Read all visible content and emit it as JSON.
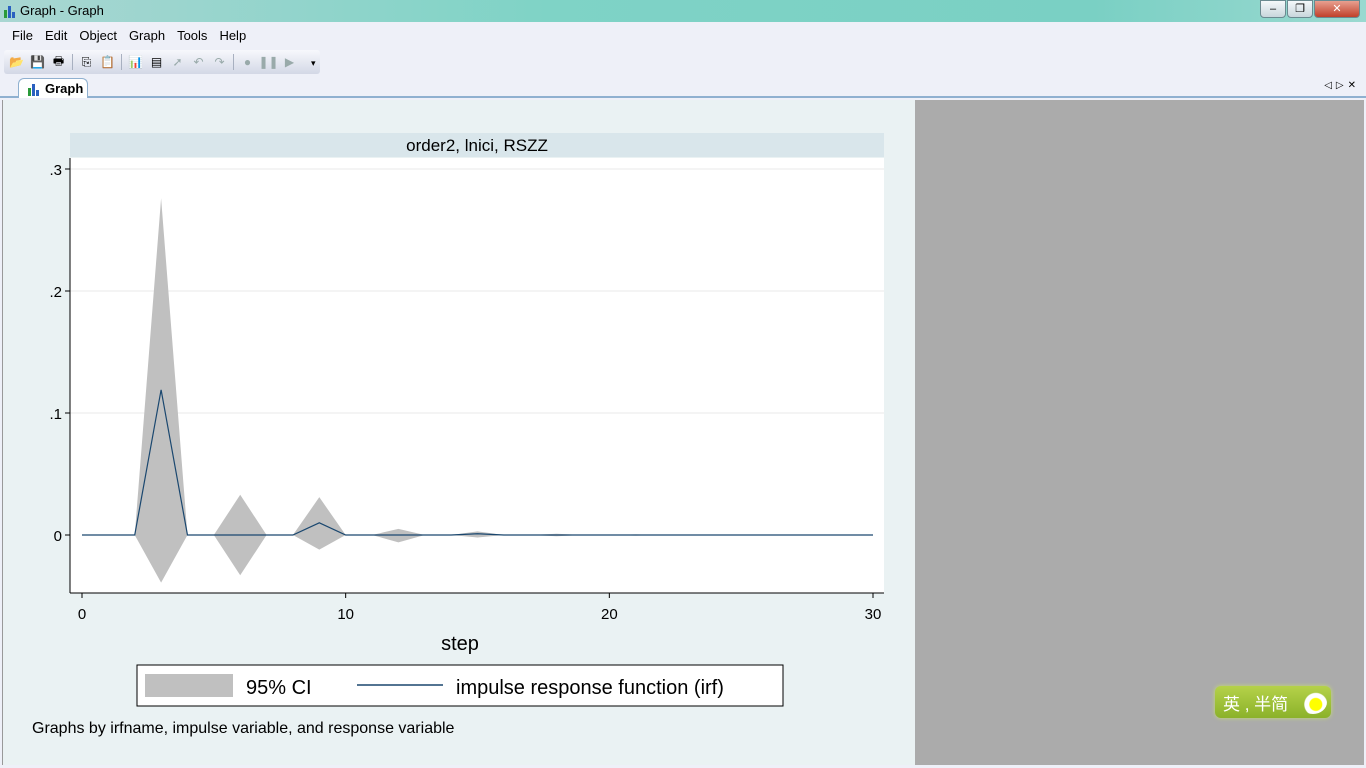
{
  "window": {
    "title": "Graph - Graph",
    "controls": [
      "minimize",
      "restore",
      "close"
    ]
  },
  "menu": [
    "File",
    "Edit",
    "Object",
    "Graph",
    "Tools",
    "Help"
  ],
  "toolbar": [
    {
      "icon": "open-icon",
      "g": "📂"
    },
    {
      "icon": "save-icon",
      "g": "💾"
    },
    {
      "icon": "print-icon",
      "g": "🖶"
    },
    {
      "sep": true
    },
    {
      "icon": "copy-icon",
      "g": "⎘"
    },
    {
      "icon": "paste-icon",
      "g": "📋"
    },
    {
      "sep": true
    },
    {
      "icon": "graph-editor-icon",
      "g": "📊"
    },
    {
      "icon": "preview-icon",
      "g": "▤"
    },
    {
      "icon": "pointer-icon",
      "g": "➚"
    },
    {
      "icon": "undo-icon",
      "g": "↶"
    },
    {
      "icon": "redo-icon",
      "g": "↷"
    },
    {
      "sep": true
    },
    {
      "icon": "record-icon",
      "g": "●"
    },
    {
      "icon": "pause-icon",
      "g": "❚❚"
    },
    {
      "icon": "play-icon",
      "g": "▶"
    }
  ],
  "tab": {
    "label": "Graph"
  },
  "ime": {
    "label": "英 , 半简"
  },
  "colors": {
    "ci_fill": "#c0c0c0",
    "irf_line": "#1a476f",
    "subtitle_bg": "#d9e6eb",
    "outer_bg": "#eaf2f3"
  },
  "chart_data": {
    "type": "area",
    "subtitle": "order2, lnici, RSZZ",
    "xlabel": "step",
    "xlim": [
      0,
      30
    ],
    "ylim": [
      -0.046,
      0.31
    ],
    "xticks": [
      0,
      10,
      20,
      30
    ],
    "yticks": [
      {
        "v": 0,
        "l": "0"
      },
      {
        "v": 0.1,
        "l": ".1"
      },
      {
        "v": 0.2,
        "l": ".2"
      },
      {
        "v": 0.3,
        "l": ".3"
      }
    ],
    "grid": true,
    "legend": {
      "placement": "bottom",
      "entries": [
        "95% CI",
        "impulse response function (irf)"
      ]
    },
    "note": "Graphs by irfname, impulse variable, and response variable",
    "x": [
      0,
      1,
      2,
      3,
      4,
      5,
      6,
      7,
      8,
      9,
      10,
      11,
      12,
      13,
      14,
      15,
      16,
      17,
      18,
      19,
      20,
      21,
      22,
      23,
      24,
      25,
      26,
      27,
      28,
      29,
      30
    ],
    "series": [
      {
        "name": "impulse response function (irf)",
        "values": [
          0,
          0,
          0,
          0.119,
          0,
          0,
          0,
          0,
          0,
          0.01,
          0,
          0,
          0,
          0,
          0,
          0.001,
          0,
          0,
          0,
          0,
          0,
          0,
          0,
          0,
          0,
          0,
          0,
          0,
          0,
          0,
          0
        ]
      },
      {
        "name": "95% CI upper",
        "values": [
          0,
          0,
          0,
          0.276,
          0,
          0,
          0.033,
          0,
          0,
          0.031,
          0,
          0,
          0.005,
          0,
          0,
          0.003,
          0,
          0,
          0.001,
          0,
          0,
          0.0005,
          0,
          0,
          0.0003,
          0,
          0,
          0,
          0,
          0,
          0
        ]
      },
      {
        "name": "95% CI lower",
        "values": [
          0,
          0,
          0,
          -0.039,
          0,
          0,
          -0.033,
          0,
          0,
          -0.012,
          0,
          0,
          -0.006,
          0,
          0,
          -0.002,
          0,
          0,
          -0.001,
          0,
          0,
          -0.0005,
          0,
          0,
          -0.0003,
          0,
          0,
          0,
          0,
          0,
          0
        ]
      }
    ]
  }
}
